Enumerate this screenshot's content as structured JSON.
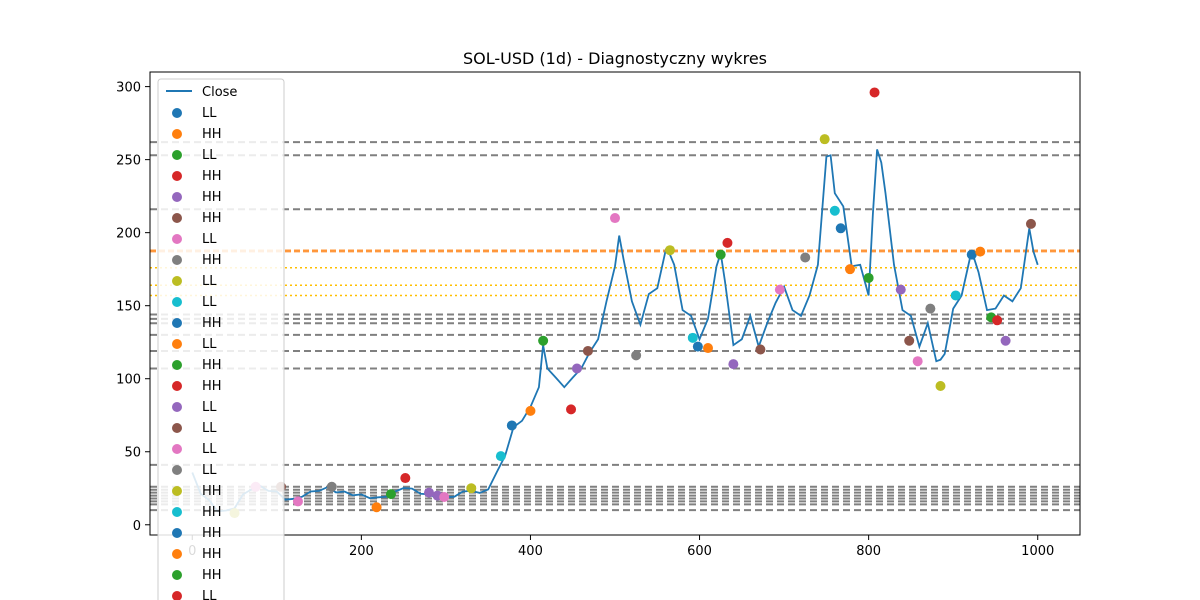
{
  "chart_data": {
    "type": "line",
    "title": "SOL-USD (1d) - Diagnostyczny wykres",
    "xlabel": "",
    "ylabel": "",
    "xlim": [
      -50,
      1050
    ],
    "ylim": [
      -7,
      310
    ],
    "x_ticks": [
      0,
      200,
      400,
      600,
      800,
      1000
    ],
    "y_ticks": [
      0,
      50,
      100,
      150,
      200,
      250,
      300
    ],
    "grid": false,
    "legend_position": "upper-left",
    "series": [
      {
        "name": "Close",
        "color": "#1f77b4",
        "x": [
          0,
          10,
          20,
          30,
          40,
          50,
          60,
          70,
          80,
          90,
          100,
          110,
          120,
          130,
          140,
          150,
          160,
          170,
          180,
          190,
          200,
          210,
          220,
          230,
          240,
          250,
          260,
          270,
          280,
          290,
          300,
          310,
          320,
          330,
          340,
          350,
          360,
          370,
          380,
          390,
          400,
          410,
          415,
          420,
          430,
          440,
          450,
          460,
          470,
          480,
          490,
          500,
          505,
          510,
          520,
          530,
          540,
          550,
          560,
          565,
          570,
          580,
          590,
          600,
          610,
          620,
          625,
          630,
          640,
          650,
          660,
          670,
          680,
          690,
          700,
          710,
          720,
          730,
          740,
          750,
          755,
          760,
          770,
          780,
          790,
          800,
          805,
          810,
          815,
          820,
          830,
          840,
          850,
          860,
          870,
          880,
          885,
          890,
          900,
          910,
          920,
          925,
          930,
          940,
          950,
          960,
          970,
          980,
          990,
          995,
          1000
        ],
        "y": [
          35,
          22,
          16,
          10,
          9,
          12,
          20,
          25,
          26,
          24,
          22,
          18,
          17,
          20,
          22,
          24,
          25,
          23,
          22,
          21,
          20,
          19,
          18,
          20,
          22,
          26,
          24,
          22,
          20,
          19,
          18,
          20,
          22,
          24,
          21,
          25,
          35,
          48,
          66,
          72,
          80,
          95,
          120,
          110,
          100,
          95,
          100,
          110,
          115,
          130,
          150,
          180,
          195,
          185,
          150,
          140,
          155,
          165,
          185,
          188,
          175,
          150,
          140,
          130,
          138,
          180,
          183,
          170,
          120,
          130,
          140,
          125,
          135,
          155,
          160,
          150,
          140,
          160,
          175,
          255,
          250,
          230,
          215,
          180,
          175,
          160,
          210,
          260,
          245,
          230,
          175,
          150,
          140,
          125,
          135,
          115,
          110,
          120,
          145,
          160,
          180,
          185,
          170,
          150,
          145,
          160,
          150,
          165,
          200,
          190,
          175
        ]
      }
    ],
    "pivots": [
      {
        "label": "LL",
        "x": 0,
        "y": null,
        "color": "#1f77b4"
      },
      {
        "label": "HH",
        "x": 0,
        "y": null,
        "color": "#ff7f0e"
      },
      {
        "label": "LL",
        "x": 235,
        "y": 21,
        "color": "#2ca02c"
      },
      {
        "label": "HH",
        "x": 252,
        "y": 32,
        "color": "#d62728"
      },
      {
        "label": "HH",
        "x": 290,
        "y": 20,
        "color": "#9467bd"
      },
      {
        "label": "HH",
        "x": 105,
        "y": 26,
        "color": "#8c564b"
      },
      {
        "label": "LL",
        "x": 125,
        "y": 16,
        "color": "#e377c2"
      },
      {
        "label": "HH",
        "x": 165,
        "y": 26,
        "color": "#7f7f7f"
      },
      {
        "label": "LL",
        "x": 330,
        "y": 25,
        "color": "#bcbd22"
      },
      {
        "label": "LL",
        "x": 365,
        "y": 47,
        "color": "#17becf"
      },
      {
        "label": "HH",
        "x": 378,
        "y": 68,
        "color": "#1f77b4"
      },
      {
        "label": "LL",
        "x": 400,
        "y": 78,
        "color": "#ff7f0e"
      },
      {
        "label": "HH",
        "x": 415,
        "y": 126,
        "color": "#2ca02c"
      },
      {
        "label": "HH",
        "x": 448,
        "y": 79,
        "color": "#d62728"
      },
      {
        "label": "LL",
        "x": 455,
        "y": 107,
        "color": "#9467bd"
      },
      {
        "label": "LL",
        "x": 468,
        "y": 119,
        "color": "#8c564b"
      },
      {
        "label": "LL",
        "x": 500,
        "y": 210,
        "color": "#e377c2"
      },
      {
        "label": "LL",
        "x": 525,
        "y": 116,
        "color": "#7f7f7f"
      },
      {
        "label": "HH",
        "x": 565,
        "y": 188,
        "color": "#bcbd22"
      },
      {
        "label": "HH",
        "x": 592,
        "y": 128,
        "color": "#17becf"
      },
      {
        "label": "HH",
        "x": 598,
        "y": 122,
        "color": "#1f77b4"
      },
      {
        "label": "HH",
        "x": 610,
        "y": 121,
        "color": "#ff7f0e"
      },
      {
        "label": "HH",
        "x": 625,
        "y": 185,
        "color": "#2ca02c"
      },
      {
        "label": "LL",
        "x": 633,
        "y": 193,
        "color": "#d62728"
      }
    ],
    "extra_markers": [
      {
        "x": 50,
        "y": 8,
        "color": "#bcbd22"
      },
      {
        "x": 75,
        "y": 26,
        "color": "#e377c2"
      },
      {
        "x": 218,
        "y": 12,
        "color": "#ff7f0e"
      },
      {
        "x": 280,
        "y": 22,
        "color": "#9467bd"
      },
      {
        "x": 298,
        "y": 19,
        "color": "#e377c2"
      },
      {
        "x": 640,
        "y": 110,
        "color": "#9467bd"
      },
      {
        "x": 672,
        "y": 120,
        "color": "#8c564b"
      },
      {
        "x": 695,
        "y": 161,
        "color": "#e377c2"
      },
      {
        "x": 725,
        "y": 183,
        "color": "#7f7f7f"
      },
      {
        "x": 748,
        "y": 264,
        "color": "#bcbd22"
      },
      {
        "x": 760,
        "y": 215,
        "color": "#17becf"
      },
      {
        "x": 767,
        "y": 203,
        "color": "#1f77b4"
      },
      {
        "x": 778,
        "y": 175,
        "color": "#ff7f0e"
      },
      {
        "x": 800,
        "y": 169,
        "color": "#2ca02c"
      },
      {
        "x": 807,
        "y": 296,
        "color": "#d62728"
      },
      {
        "x": 838,
        "y": 161,
        "color": "#9467bd"
      },
      {
        "x": 848,
        "y": 126,
        "color": "#8c564b"
      },
      {
        "x": 858,
        "y": 112,
        "color": "#e377c2"
      },
      {
        "x": 873,
        "y": 148,
        "color": "#7f7f7f"
      },
      {
        "x": 885,
        "y": 95,
        "color": "#bcbd22"
      },
      {
        "x": 903,
        "y": 157,
        "color": "#17becf"
      },
      {
        "x": 922,
        "y": 185,
        "color": "#1f77b4"
      },
      {
        "x": 932,
        "y": 187,
        "color": "#ff7f0e"
      },
      {
        "x": 945,
        "y": 142,
        "color": "#2ca02c"
      },
      {
        "x": 952,
        "y": 140,
        "color": "#d62728"
      },
      {
        "x": 962,
        "y": 126,
        "color": "#9467bd"
      },
      {
        "x": 992,
        "y": 206,
        "color": "#8c564b"
      }
    ],
    "gray_levels": [
      262,
      253,
      216,
      144,
      141,
      138,
      130,
      119,
      107,
      41,
      26,
      24,
      22,
      20,
      18,
      16,
      14,
      10
    ],
    "orange_levels": [
      188,
      187
    ],
    "orange_dotted_levels": [
      176,
      164,
      157
    ],
    "gray_color": "#808080",
    "orange_color": "#ff7f0e",
    "orange_dotted_color": "#ffbf00"
  }
}
